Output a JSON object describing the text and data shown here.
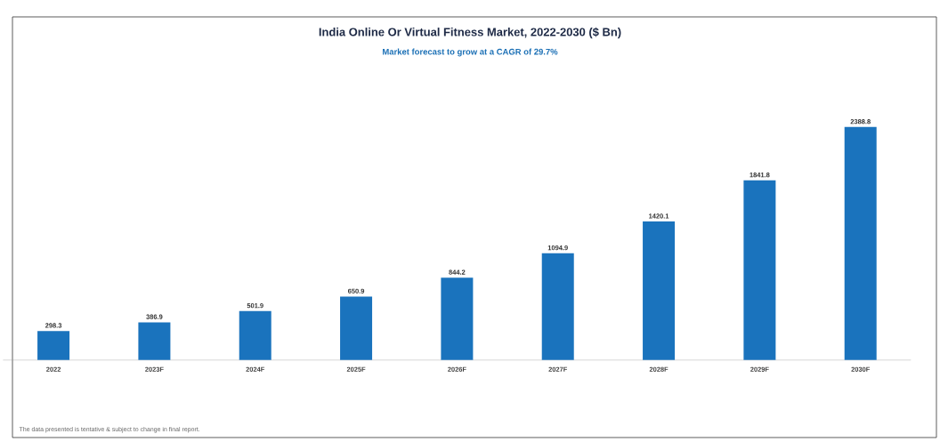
{
  "chart_data": {
    "type": "bar",
    "title": "India Online Or Virtual Fitness Market, 2022-2030 ($ Bn)",
    "subtitle": "Market forecast to grow at a CAGR of 29.7%",
    "categories": [
      "2022",
      "2023F",
      "2024F",
      "2025F",
      "2026F",
      "2027F",
      "2028F",
      "2029F",
      "2030F"
    ],
    "values": [
      298.3,
      386.9,
      501.9,
      650.9,
      844.2,
      1094.9,
      1420.1,
      1841.8,
      2388.8
    ],
    "color": "#1a73bd",
    "data_labels": true,
    "annotations": [
      "The data presented is tentative & subject to change in final report."
    ]
  }
}
